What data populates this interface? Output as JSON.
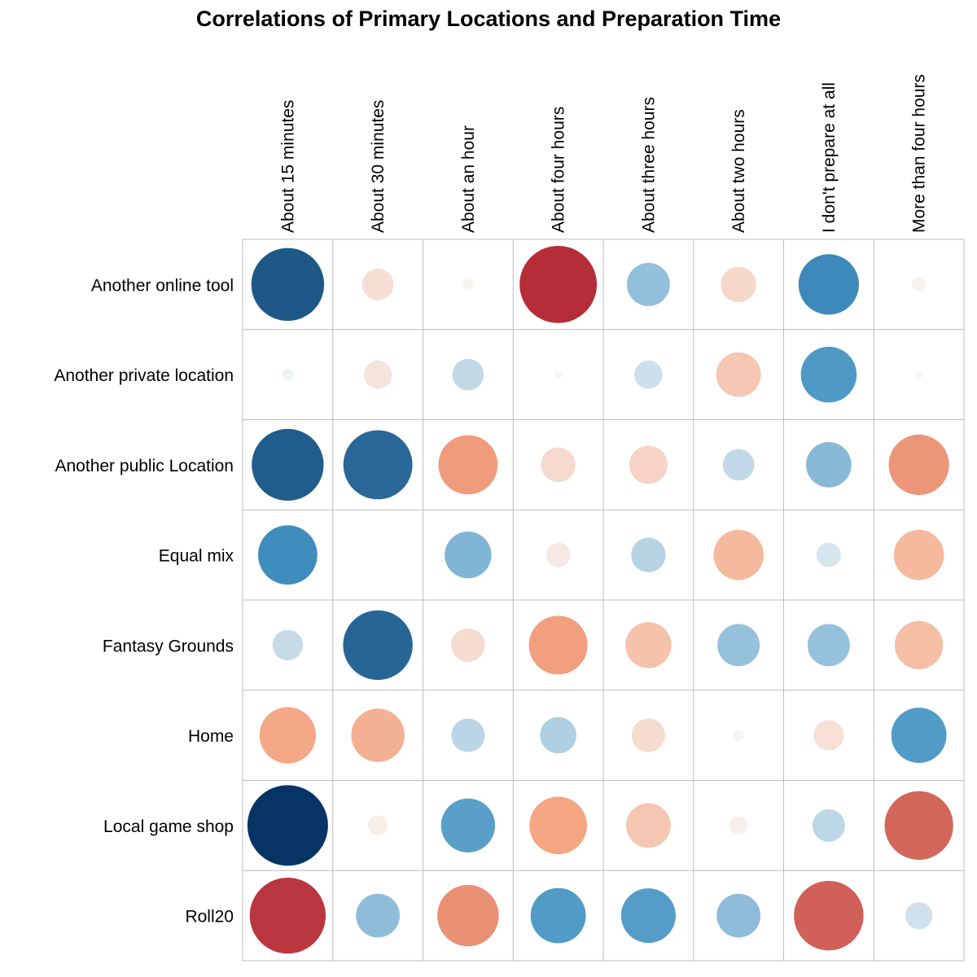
{
  "chart_data": {
    "type": "heatmap",
    "title": "Correlations of Primary Locations and Preparation Time",
    "columns": [
      "About 15 minutes",
      "About 30 minutes",
      "About an hour",
      "About four hours",
      "About three hours",
      "About two hours",
      "I don't prepare at all",
      "More than four hours"
    ],
    "rows": [
      "Another online tool",
      "Another private location",
      "Another public Location",
      "Equal mix",
      "Fantasy Grounds",
      "Home",
      "Local game shop",
      "Roll20"
    ],
    "values": [
      [
        -0.8,
        0.15,
        0.02,
        0.9,
        -0.28,
        0.19,
        -0.55,
        0.03
      ],
      [
        -0.02,
        0.12,
        -0.15,
        0.01,
        -0.12,
        0.3,
        -0.47,
        0.01
      ],
      [
        -0.78,
        -0.72,
        0.53,
        0.18,
        0.22,
        -0.15,
        -0.31,
        0.55
      ],
      [
        -0.53,
        0.0,
        -0.33,
        0.09,
        -0.18,
        0.38,
        -0.09,
        0.38
      ],
      [
        -0.14,
        -0.73,
        0.17,
        0.52,
        0.32,
        -0.27,
        -0.27,
        0.35
      ],
      [
        0.48,
        0.43,
        -0.17,
        -0.2,
        0.17,
        0.02,
        0.14,
        -0.46
      ],
      [
        -0.98,
        0.06,
        -0.44,
        0.5,
        0.3,
        0.05,
        -0.16,
        0.71
      ],
      [
        0.87,
        -0.29,
        0.57,
        -0.46,
        -0.45,
        -0.29,
        0.73,
        -0.11
      ]
    ],
    "color_scale": {
      "negative_strong": "#053061",
      "negative_mid": "#4393c3",
      "neutral": "#f7f7f7",
      "positive_mid": "#f4a582",
      "positive_strong": "#a50f26"
    },
    "grid": true,
    "legend": "none"
  }
}
